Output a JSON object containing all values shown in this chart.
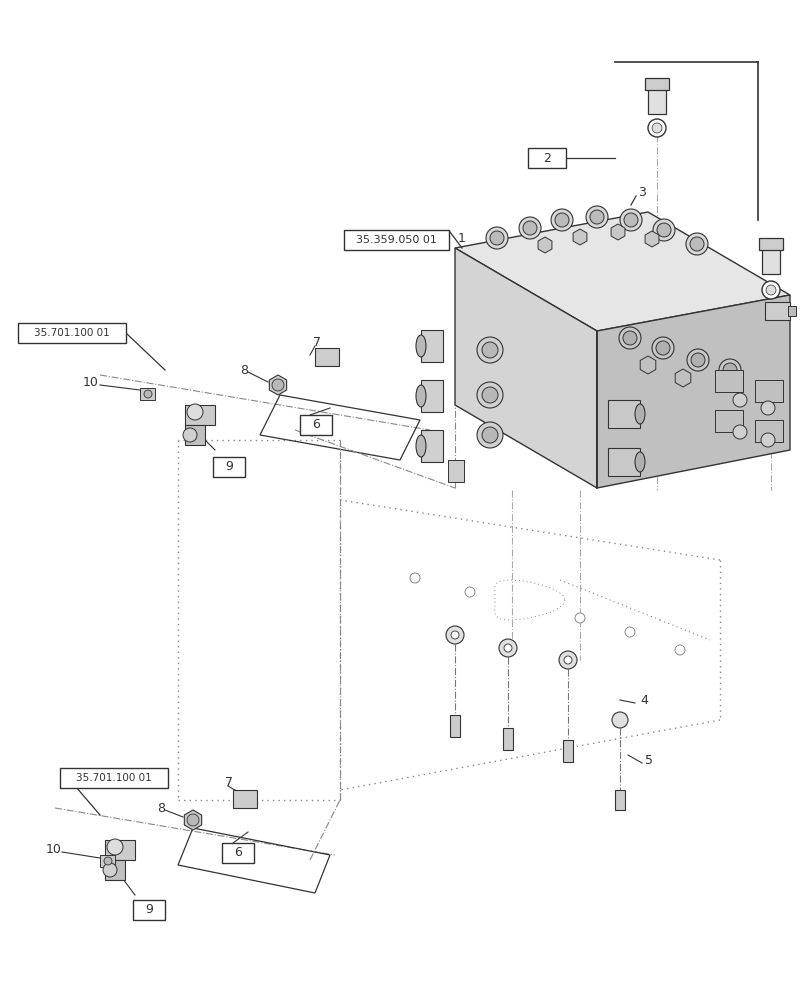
{
  "background_color": "#ffffff",
  "figure_width": 8.12,
  "figure_height": 10.0,
  "ref1_label": "35.359.050 01",
  "ref_left": "35.701.100 01",
  "dark": "#333333",
  "gray": "#888888",
  "lightgray": "#cccccc",
  "midgray": "#aaaaaa"
}
